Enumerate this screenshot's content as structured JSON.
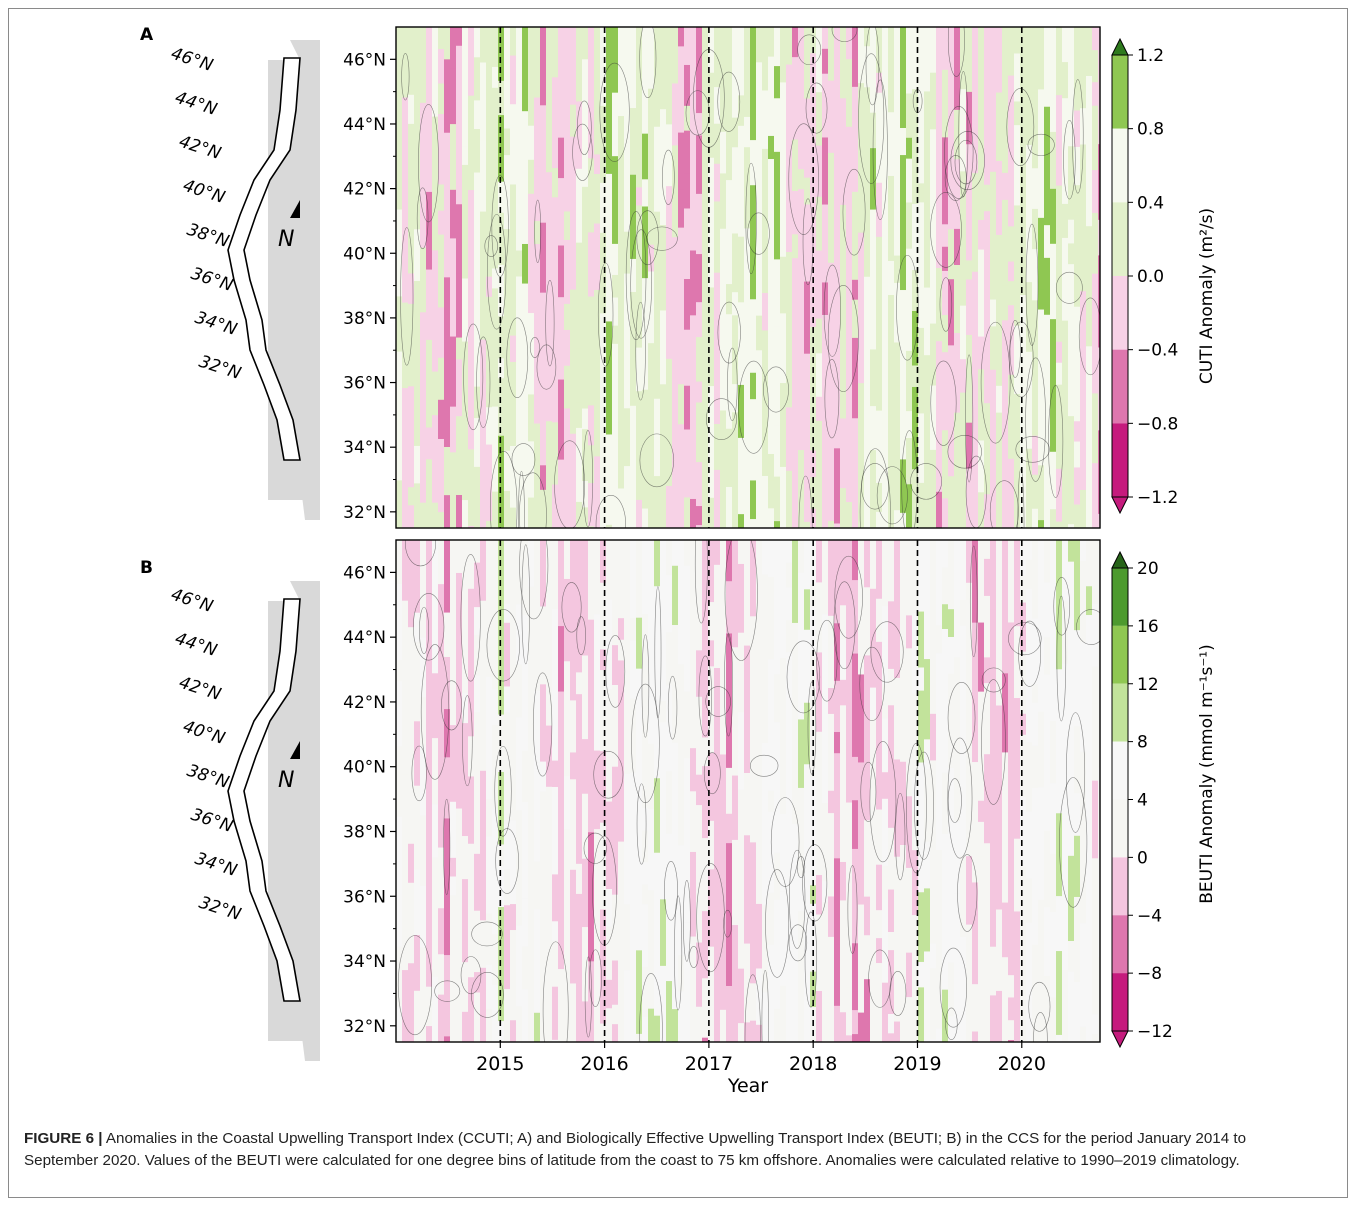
{
  "figure": {
    "x_label": "Year",
    "x_ticks": [
      "2015",
      "2016",
      "2017",
      "2018",
      "2019",
      "2020"
    ],
    "y_ticks": [
      "32°N",
      "34°N",
      "36°N",
      "38°N",
      "40°N",
      "42°N",
      "44°N",
      "46°N"
    ],
    "map_lat_labels": [
      "46°N",
      "44°N",
      "42°N",
      "40°N",
      "38°N",
      "36°N",
      "34°N",
      "32°N"
    ],
    "north_label": "N"
  },
  "panels": [
    {
      "letter": "A",
      "colorbar_label": "CUTI Anomaly (m²/s)",
      "colorbar_ticks": [
        "1.2",
        "0.8",
        "0.4",
        "0.0",
        "−0.4",
        "−0.8",
        "−1.2"
      ]
    },
    {
      "letter": "B",
      "colorbar_label": "BEUTI Anomaly (mmol m⁻¹s⁻¹)",
      "colorbar_ticks": [
        "20",
        "16",
        "12",
        "8",
        "4",
        "0",
        "−4",
        "−8",
        "−12"
      ]
    }
  ],
  "chart_data": [
    {
      "type": "heatmap",
      "panel": "A",
      "x": "Year",
      "x_range": [
        2014.0,
        2020.75
      ],
      "y_range": [
        31.5,
        47
      ],
      "y_unit": "°N latitude",
      "levels": [
        -1.2,
        -0.8,
        -0.4,
        0.0,
        0.4,
        0.8,
        1.2
      ],
      "colorbar_label": "CUTI Anomaly (m²/s)",
      "colors": [
        "#c51b7d",
        "#de77ae",
        "#f7d2e6",
        "#e2f0cb",
        "#f6f9ef",
        "#8fc752",
        "#2e7a1d"
      ],
      "year_dividers": [
        2015,
        2016,
        2017,
        2018,
        2019,
        2020
      ]
    },
    {
      "type": "heatmap",
      "panel": "B",
      "x": "Year",
      "x_range": [
        2014.0,
        2020.75
      ],
      "y_range": [
        31.5,
        47
      ],
      "y_unit": "°N latitude",
      "levels": [
        -12,
        -8,
        -4,
        0,
        4,
        8,
        12,
        16,
        20
      ],
      "colorbar_label": "BEUTI Anomaly (mmol m⁻¹s⁻¹)",
      "colors": [
        "#c51b7d",
        "#de77ae",
        "#f4c6df",
        "#f6f6f3",
        "#f7f7f7",
        "#c2e39b",
        "#8fc752",
        "#4d9a2f",
        "#276419"
      ],
      "year_dividers": [
        2015,
        2016,
        2017,
        2018,
        2019,
        2020
      ]
    }
  ],
  "caption": {
    "label": "FIGURE 6 |",
    "text": " Anomalies in the Coastal Upwelling Transport Index (CCUTI; A) and Biologically Effective Upwelling Transport Index (BEUTI; B) in the CCS for the period January 2014 to September 2020. Values of the BEUTI were calculated for one degree bins of latitude from the coast to 75 km offshore. Anomalies were calculated relative to 1990–2019 climatology."
  }
}
